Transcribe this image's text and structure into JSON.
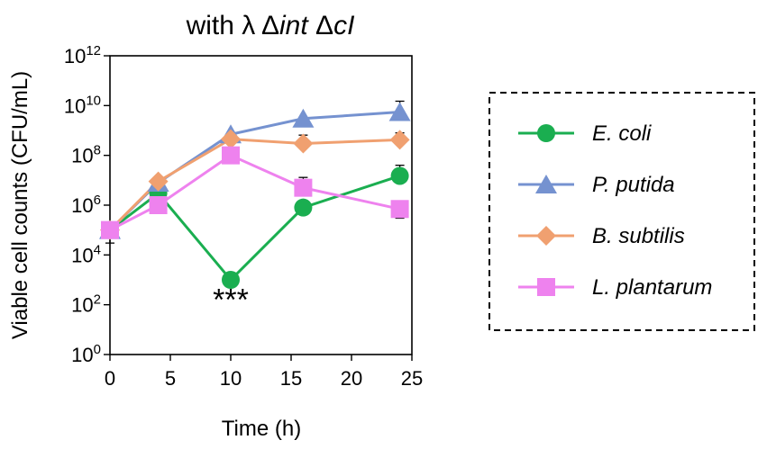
{
  "chart_data": {
    "type": "line",
    "title": {
      "prefix": "with λ Δ",
      "int": "int",
      "mid": " Δ",
      "cI": "cI"
    },
    "xlabel": "Time (h)",
    "ylabel": "Viable cell counts (CFU/mL)",
    "xlim": [
      0,
      25
    ],
    "xticks": [
      0,
      5,
      10,
      15,
      20,
      25
    ],
    "ylim_log10": [
      0,
      12
    ],
    "yticks": [
      {
        "base": "10",
        "exp": "0",
        "value": 1
      },
      {
        "base": "10",
        "exp": "2",
        "value": 100
      },
      {
        "base": "10",
        "exp": "4",
        "value": 10000
      },
      {
        "base": "10",
        "exp": "6",
        "value": 1000000
      },
      {
        "base": "10",
        "exp": "8",
        "value": 100000000
      },
      {
        "base": "10",
        "exp": "10",
        "value": 10000000000
      },
      {
        "base": "10",
        "exp": "12",
        "value": 1000000000000
      }
    ],
    "x": [
      0,
      4,
      10,
      16,
      24
    ],
    "series": [
      {
        "name": "E. coli",
        "color": "#1aae50",
        "marker": "circle",
        "values": [
          100000,
          3000000,
          1000,
          800000,
          15000000
        ],
        "err_high": [
          null,
          null,
          null,
          null,
          40000000
        ],
        "err_low": [
          null,
          null,
          null,
          null,
          null
        ]
      },
      {
        "name": "P. putida",
        "color": "#7592d0",
        "marker": "triangle",
        "values": [
          100000,
          8000000,
          700000000,
          3000000000,
          5500000000
        ],
        "err_high": [
          null,
          null,
          null,
          null,
          15000000000
        ],
        "err_low": [
          null,
          null,
          null,
          null,
          null
        ]
      },
      {
        "name": "B. subtilis",
        "color": "#f0a070",
        "marker": "diamond",
        "values": [
          100000,
          9000000,
          450000000,
          300000000,
          420000000
        ],
        "err_high": [
          null,
          null,
          800000000,
          650000000,
          800000000
        ],
        "err_low": [
          null,
          null,
          null,
          null,
          null
        ]
      },
      {
        "name": "L. plantarum",
        "color": "#ee82ee",
        "marker": "square",
        "values": [
          100000,
          1000000,
          100000000,
          5000000,
          700000
        ],
        "err_high": [
          null,
          null,
          null,
          13000000,
          null
        ],
        "err_low": [
          30000,
          null,
          null,
          null,
          300000
        ]
      }
    ],
    "annotations": [
      {
        "text": "***",
        "x": 10,
        "y": 100
      }
    ],
    "legend_position": "right"
  }
}
